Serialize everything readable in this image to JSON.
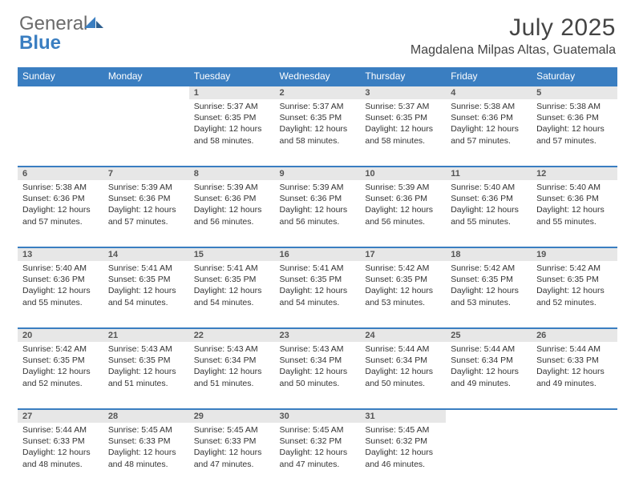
{
  "brand": {
    "part1": "General",
    "part2": "Blue"
  },
  "title": "July 2025",
  "location": "Magdalena Milpas Altas, Guatemala",
  "colors": {
    "header_bg": "#3a7ec1",
    "daynum_bg": "#e7e7e7",
    "text": "#333333",
    "brand_gray": "#6b6b6b",
    "brand_blue": "#3a7ec1"
  },
  "fonts": {
    "base": "Arial",
    "title_size_pt": 22,
    "location_size_pt": 12,
    "cell_size_pt": 8
  },
  "weekdays": [
    "Sunday",
    "Monday",
    "Tuesday",
    "Wednesday",
    "Thursday",
    "Friday",
    "Saturday"
  ],
  "weeks": [
    {
      "nums": [
        "",
        "",
        "1",
        "2",
        "3",
        "4",
        "5"
      ],
      "cells": [
        null,
        null,
        {
          "sunrise": "Sunrise: 5:37 AM",
          "sunset": "Sunset: 6:35 PM",
          "day1": "Daylight: 12 hours",
          "day2": "and 58 minutes."
        },
        {
          "sunrise": "Sunrise: 5:37 AM",
          "sunset": "Sunset: 6:35 PM",
          "day1": "Daylight: 12 hours",
          "day2": "and 58 minutes."
        },
        {
          "sunrise": "Sunrise: 5:37 AM",
          "sunset": "Sunset: 6:35 PM",
          "day1": "Daylight: 12 hours",
          "day2": "and 58 minutes."
        },
        {
          "sunrise": "Sunrise: 5:38 AM",
          "sunset": "Sunset: 6:36 PM",
          "day1": "Daylight: 12 hours",
          "day2": "and 57 minutes."
        },
        {
          "sunrise": "Sunrise: 5:38 AM",
          "sunset": "Sunset: 6:36 PM",
          "day1": "Daylight: 12 hours",
          "day2": "and 57 minutes."
        }
      ]
    },
    {
      "nums": [
        "6",
        "7",
        "8",
        "9",
        "10",
        "11",
        "12"
      ],
      "cells": [
        {
          "sunrise": "Sunrise: 5:38 AM",
          "sunset": "Sunset: 6:36 PM",
          "day1": "Daylight: 12 hours",
          "day2": "and 57 minutes."
        },
        {
          "sunrise": "Sunrise: 5:39 AM",
          "sunset": "Sunset: 6:36 PM",
          "day1": "Daylight: 12 hours",
          "day2": "and 57 minutes."
        },
        {
          "sunrise": "Sunrise: 5:39 AM",
          "sunset": "Sunset: 6:36 PM",
          "day1": "Daylight: 12 hours",
          "day2": "and 56 minutes."
        },
        {
          "sunrise": "Sunrise: 5:39 AM",
          "sunset": "Sunset: 6:36 PM",
          "day1": "Daylight: 12 hours",
          "day2": "and 56 minutes."
        },
        {
          "sunrise": "Sunrise: 5:39 AM",
          "sunset": "Sunset: 6:36 PM",
          "day1": "Daylight: 12 hours",
          "day2": "and 56 minutes."
        },
        {
          "sunrise": "Sunrise: 5:40 AM",
          "sunset": "Sunset: 6:36 PM",
          "day1": "Daylight: 12 hours",
          "day2": "and 55 minutes."
        },
        {
          "sunrise": "Sunrise: 5:40 AM",
          "sunset": "Sunset: 6:36 PM",
          "day1": "Daylight: 12 hours",
          "day2": "and 55 minutes."
        }
      ]
    },
    {
      "nums": [
        "13",
        "14",
        "15",
        "16",
        "17",
        "18",
        "19"
      ],
      "cells": [
        {
          "sunrise": "Sunrise: 5:40 AM",
          "sunset": "Sunset: 6:36 PM",
          "day1": "Daylight: 12 hours",
          "day2": "and 55 minutes."
        },
        {
          "sunrise": "Sunrise: 5:41 AM",
          "sunset": "Sunset: 6:35 PM",
          "day1": "Daylight: 12 hours",
          "day2": "and 54 minutes."
        },
        {
          "sunrise": "Sunrise: 5:41 AM",
          "sunset": "Sunset: 6:35 PM",
          "day1": "Daylight: 12 hours",
          "day2": "and 54 minutes."
        },
        {
          "sunrise": "Sunrise: 5:41 AM",
          "sunset": "Sunset: 6:35 PM",
          "day1": "Daylight: 12 hours",
          "day2": "and 54 minutes."
        },
        {
          "sunrise": "Sunrise: 5:42 AM",
          "sunset": "Sunset: 6:35 PM",
          "day1": "Daylight: 12 hours",
          "day2": "and 53 minutes."
        },
        {
          "sunrise": "Sunrise: 5:42 AM",
          "sunset": "Sunset: 6:35 PM",
          "day1": "Daylight: 12 hours",
          "day2": "and 53 minutes."
        },
        {
          "sunrise": "Sunrise: 5:42 AM",
          "sunset": "Sunset: 6:35 PM",
          "day1": "Daylight: 12 hours",
          "day2": "and 52 minutes."
        }
      ]
    },
    {
      "nums": [
        "20",
        "21",
        "22",
        "23",
        "24",
        "25",
        "26"
      ],
      "cells": [
        {
          "sunrise": "Sunrise: 5:42 AM",
          "sunset": "Sunset: 6:35 PM",
          "day1": "Daylight: 12 hours",
          "day2": "and 52 minutes."
        },
        {
          "sunrise": "Sunrise: 5:43 AM",
          "sunset": "Sunset: 6:35 PM",
          "day1": "Daylight: 12 hours",
          "day2": "and 51 minutes."
        },
        {
          "sunrise": "Sunrise: 5:43 AM",
          "sunset": "Sunset: 6:34 PM",
          "day1": "Daylight: 12 hours",
          "day2": "and 51 minutes."
        },
        {
          "sunrise": "Sunrise: 5:43 AM",
          "sunset": "Sunset: 6:34 PM",
          "day1": "Daylight: 12 hours",
          "day2": "and 50 minutes."
        },
        {
          "sunrise": "Sunrise: 5:44 AM",
          "sunset": "Sunset: 6:34 PM",
          "day1": "Daylight: 12 hours",
          "day2": "and 50 minutes."
        },
        {
          "sunrise": "Sunrise: 5:44 AM",
          "sunset": "Sunset: 6:34 PM",
          "day1": "Daylight: 12 hours",
          "day2": "and 49 minutes."
        },
        {
          "sunrise": "Sunrise: 5:44 AM",
          "sunset": "Sunset: 6:33 PM",
          "day1": "Daylight: 12 hours",
          "day2": "and 49 minutes."
        }
      ]
    },
    {
      "nums": [
        "27",
        "28",
        "29",
        "30",
        "31",
        "",
        ""
      ],
      "cells": [
        {
          "sunrise": "Sunrise: 5:44 AM",
          "sunset": "Sunset: 6:33 PM",
          "day1": "Daylight: 12 hours",
          "day2": "and 48 minutes."
        },
        {
          "sunrise": "Sunrise: 5:45 AM",
          "sunset": "Sunset: 6:33 PM",
          "day1": "Daylight: 12 hours",
          "day2": "and 48 minutes."
        },
        {
          "sunrise": "Sunrise: 5:45 AM",
          "sunset": "Sunset: 6:33 PM",
          "day1": "Daylight: 12 hours",
          "day2": "and 47 minutes."
        },
        {
          "sunrise": "Sunrise: 5:45 AM",
          "sunset": "Sunset: 6:32 PM",
          "day1": "Daylight: 12 hours",
          "day2": "and 47 minutes."
        },
        {
          "sunrise": "Sunrise: 5:45 AM",
          "sunset": "Sunset: 6:32 PM",
          "day1": "Daylight: 12 hours",
          "day2": "and 46 minutes."
        },
        null,
        null
      ]
    }
  ]
}
